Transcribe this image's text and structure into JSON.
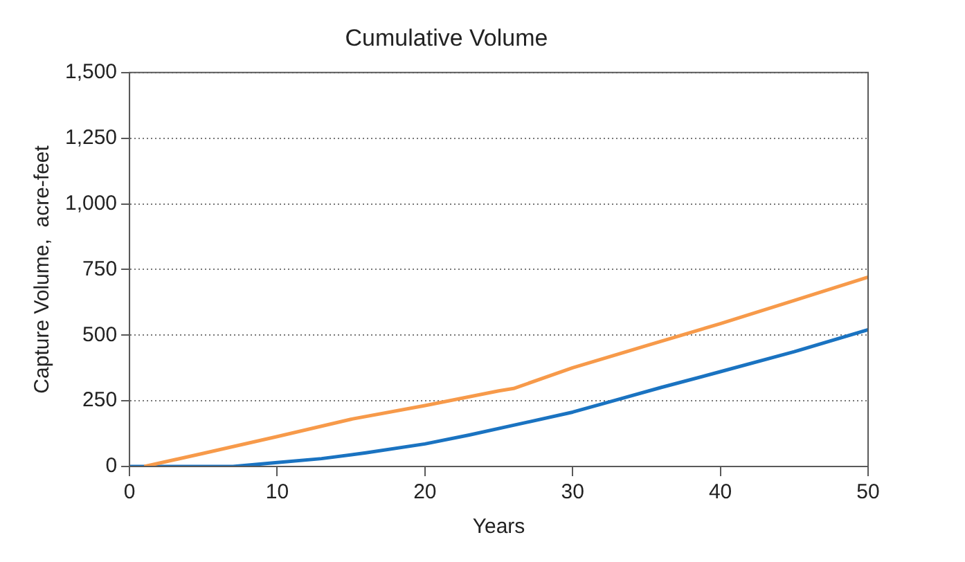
{
  "chart_data": {
    "type": "line",
    "title": "Cumulative Volume",
    "xlabel": "Years",
    "ylabel": "Capture Volume,  acre-feet",
    "xlim": [
      0,
      50
    ],
    "xticks": [
      0,
      10,
      20,
      30,
      40,
      50
    ],
    "ylim": [
      0,
      1500
    ],
    "yticks": [
      0,
      250,
      500,
      750,
      {
        "value": 1000,
        "label": "1,000"
      },
      {
        "value": 1250,
        "label": "1,250"
      },
      {
        "value": 1500,
        "label": "1,500"
      }
    ],
    "grid": "y",
    "legend": false,
    "marker": "none",
    "line_style": "solid",
    "series": [
      {
        "color": "#f79a4a",
        "x": [
          1,
          5,
          10,
          15,
          20,
          25,
          26,
          30,
          35,
          40,
          45,
          50
        ],
        "values": [
          0,
          50,
          114,
          180,
          232,
          288,
          297,
          376,
          460,
          544,
          632,
          721
        ]
      },
      {
        "color": "#1a73c1",
        "x": [
          0,
          7,
          10,
          13,
          16,
          20,
          23,
          26,
          30,
          33,
          36,
          40,
          45,
          50
        ],
        "values": [
          0,
          0,
          15,
          30,
          52,
          86,
          120,
          157,
          207,
          254,
          301,
          361,
          437,
          521
        ]
      }
    ]
  }
}
